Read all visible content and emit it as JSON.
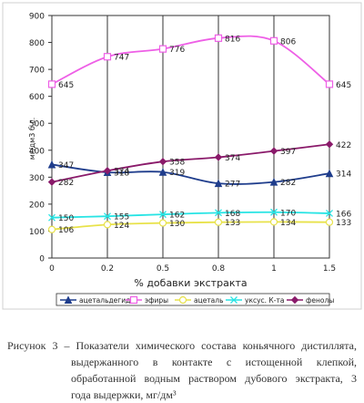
{
  "chart_data": {
    "type": "line",
    "categories": [
      "0",
      "0.2",
      "0.5",
      "0.8",
      "1",
      "1.5"
    ],
    "ylabel": "мг/дм3 б.с.",
    "xlabel": "% добавки экстракта",
    "ylim": [
      0,
      900
    ],
    "yticks": [
      "0",
      "100",
      "200",
      "300",
      "400",
      "500",
      "600",
      "700",
      "800",
      "900"
    ],
    "grid": "vertical",
    "legend_position": "bottom",
    "series": [
      {
        "name": "ацетальдегид",
        "color": "#1f3d8c",
        "marker": "triangle",
        "values": [
          347,
          318,
          319,
          277,
          282,
          314
        ],
        "labels": [
          "347",
          "318",
          "319",
          "277",
          "282",
          "314"
        ]
      },
      {
        "name": "эфиры",
        "color": "#ee5fe6",
        "marker": "square",
        "values": [
          645,
          747,
          776,
          816,
          806,
          645
        ],
        "labels": [
          "645",
          "747",
          "776",
          "816",
          "806",
          "645"
        ]
      },
      {
        "name": "ацеталь",
        "color": "#e8e24a",
        "marker": "circle",
        "values": [
          106,
          124,
          130,
          133,
          134,
          133
        ],
        "labels": [
          "106",
          "124",
          "130",
          "133",
          "134",
          "133"
        ]
      },
      {
        "name": "уксус. К-та",
        "color": "#27e4e4",
        "marker": "x",
        "values": [
          150,
          155,
          162,
          168,
          170,
          166
        ],
        "labels": [
          "150",
          "155",
          "162",
          "168",
          "170",
          "166"
        ]
      },
      {
        "name": "фенолы",
        "color": "#8a1a6a",
        "marker": "diamond",
        "values": [
          282,
          324,
          358,
          374,
          397,
          422
        ],
        "labels": [
          "282",
          "324",
          "358",
          "374",
          "397",
          "422"
        ]
      }
    ]
  },
  "caption": {
    "line1": "Рисунок 3 – Показатели химического состава коньячного дистиллята,",
    "line2": "выдержанного в контакте с истощенной клепкой,",
    "line3": "обработанной водным раствором дубового экстракта, 3",
    "line4": "года выдержки, мг/дм³"
  }
}
